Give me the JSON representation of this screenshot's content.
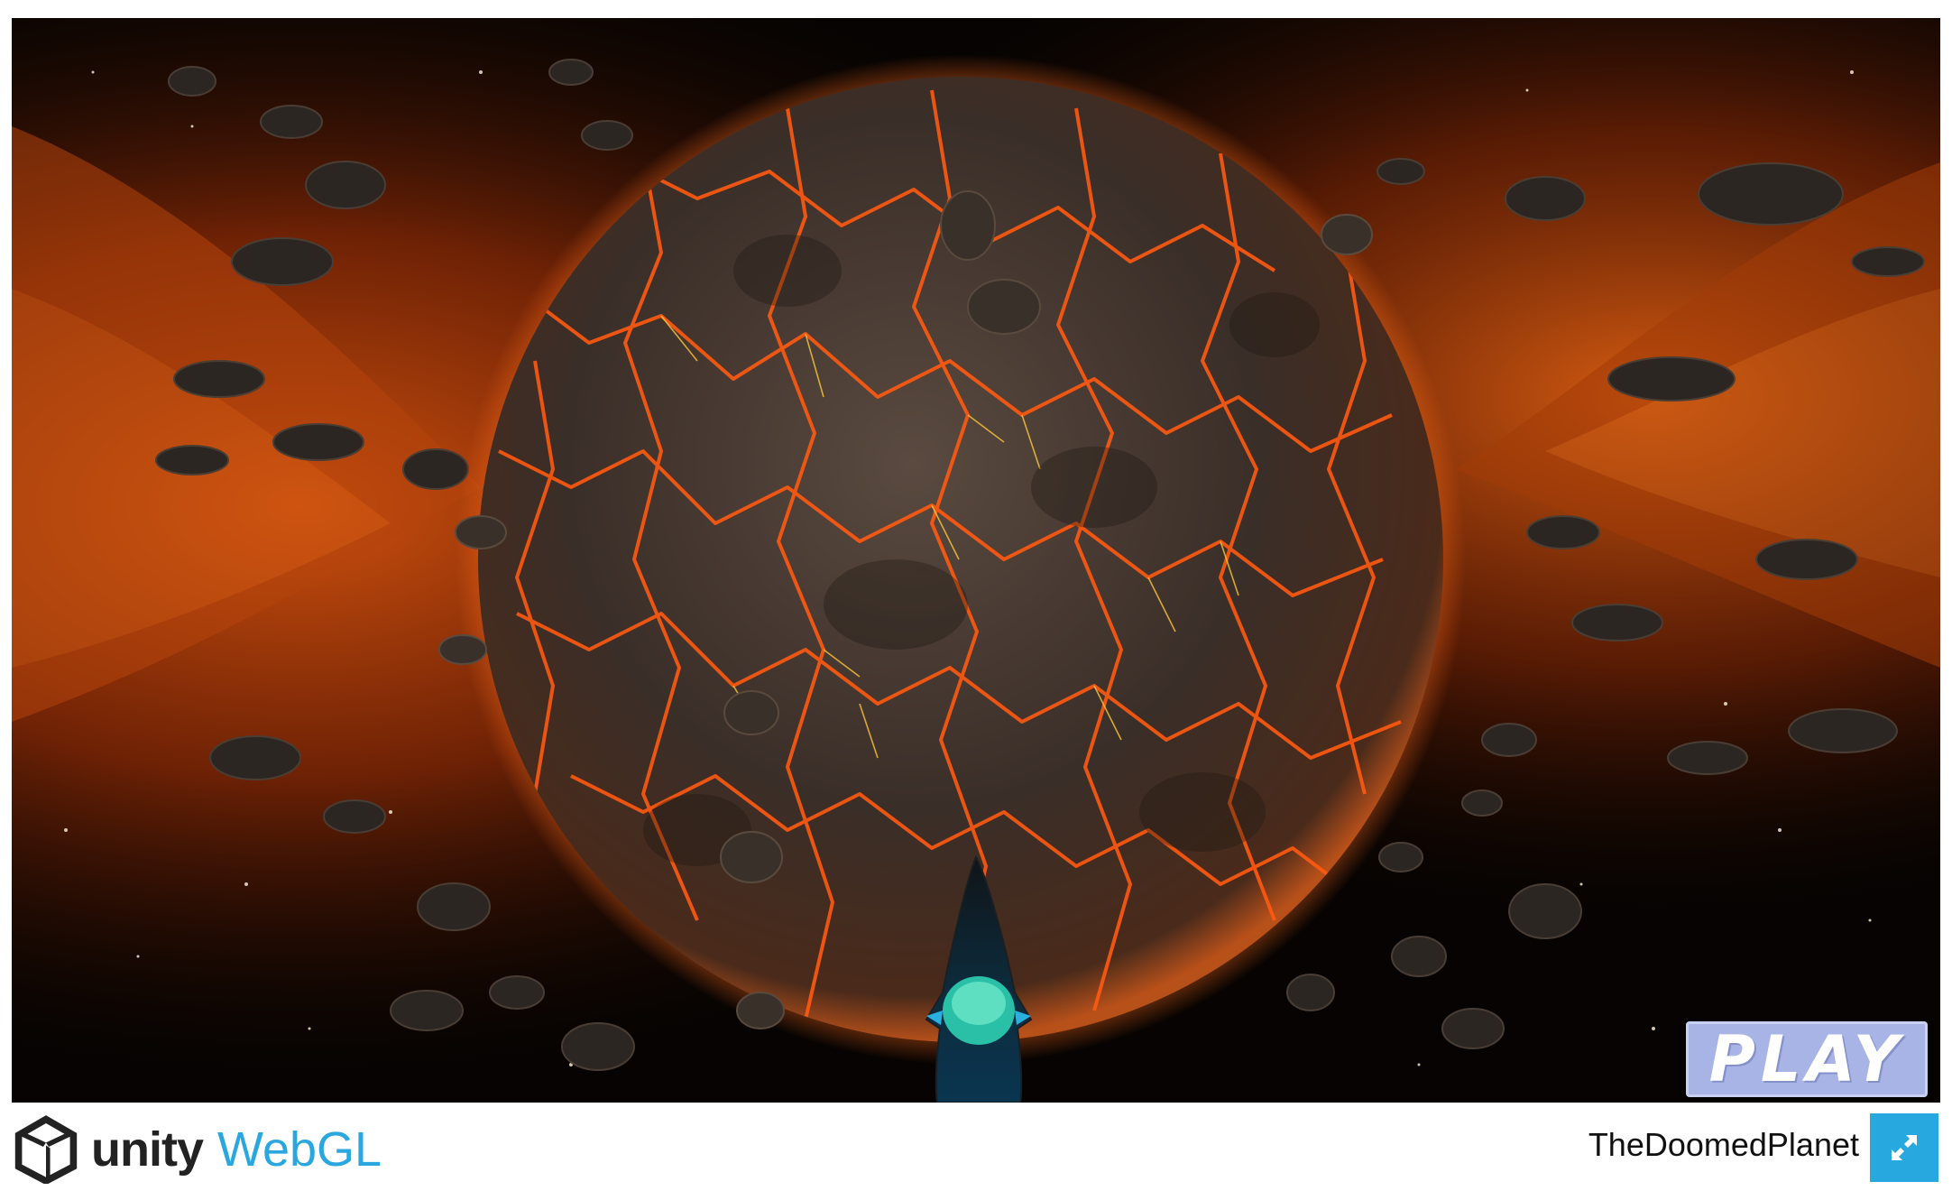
{
  "game": {
    "title": "TheDoomedPlanet",
    "play_label": "PLAY"
  },
  "footer": {
    "unity_label": "unity",
    "webgl_label": "WebGL",
    "fullscreen_icon": "fullscreen-icon"
  },
  "colors": {
    "accent": "#27a8df",
    "play_button": "#a9b4e6",
    "lava": "#ff5a10",
    "nebula": "#c2410a"
  }
}
